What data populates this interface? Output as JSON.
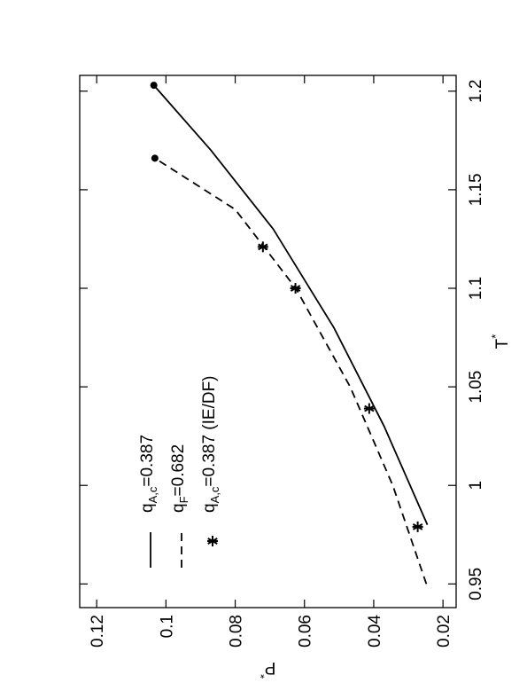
{
  "chart_data": {
    "type": "line",
    "xlabel": [
      "T",
      "*"
    ],
    "ylabel": [
      "P",
      "*"
    ],
    "xlim": [
      0.938,
      1.208
    ],
    "xticks": [
      0.95,
      1,
      1.05,
      1.1,
      1.15,
      1.2
    ],
    "ylim": [
      0.0162,
      0.1249
    ],
    "yticks": [
      0.02,
      0.04,
      0.06,
      0.08,
      0.1,
      0.12
    ],
    "legend": "upper left",
    "series": [
      {
        "name": [
          "q",
          "A,c",
          "=0.387"
        ],
        "style": "solid",
        "color": "#000000",
        "end_marker": true,
        "x": [
          0.98,
          1.03,
          1.08,
          1.13,
          1.17,
          1.203
        ],
        "values": [
          0.0245,
          0.037,
          0.0515,
          0.069,
          0.087,
          0.1035
        ]
      },
      {
        "name": [
          "q",
          "F",
          "=0.682"
        ],
        "style": "dashed",
        "color": "#000000",
        "end_marker": true,
        "x": [
          0.95,
          1.0,
          1.05,
          1.1,
          1.14,
          1.166
        ],
        "values": [
          0.0248,
          0.0345,
          0.0468,
          0.0625,
          0.08,
          0.1032
        ]
      },
      {
        "name": [
          "q",
          "A,c",
          "=0.387 (IE/DF)"
        ],
        "style": "star",
        "color": "#000000",
        "x": [
          0.979,
          1.039,
          1.1,
          1.121
        ],
        "values": [
          0.0273,
          0.0413,
          0.0626,
          0.072
        ]
      }
    ]
  }
}
